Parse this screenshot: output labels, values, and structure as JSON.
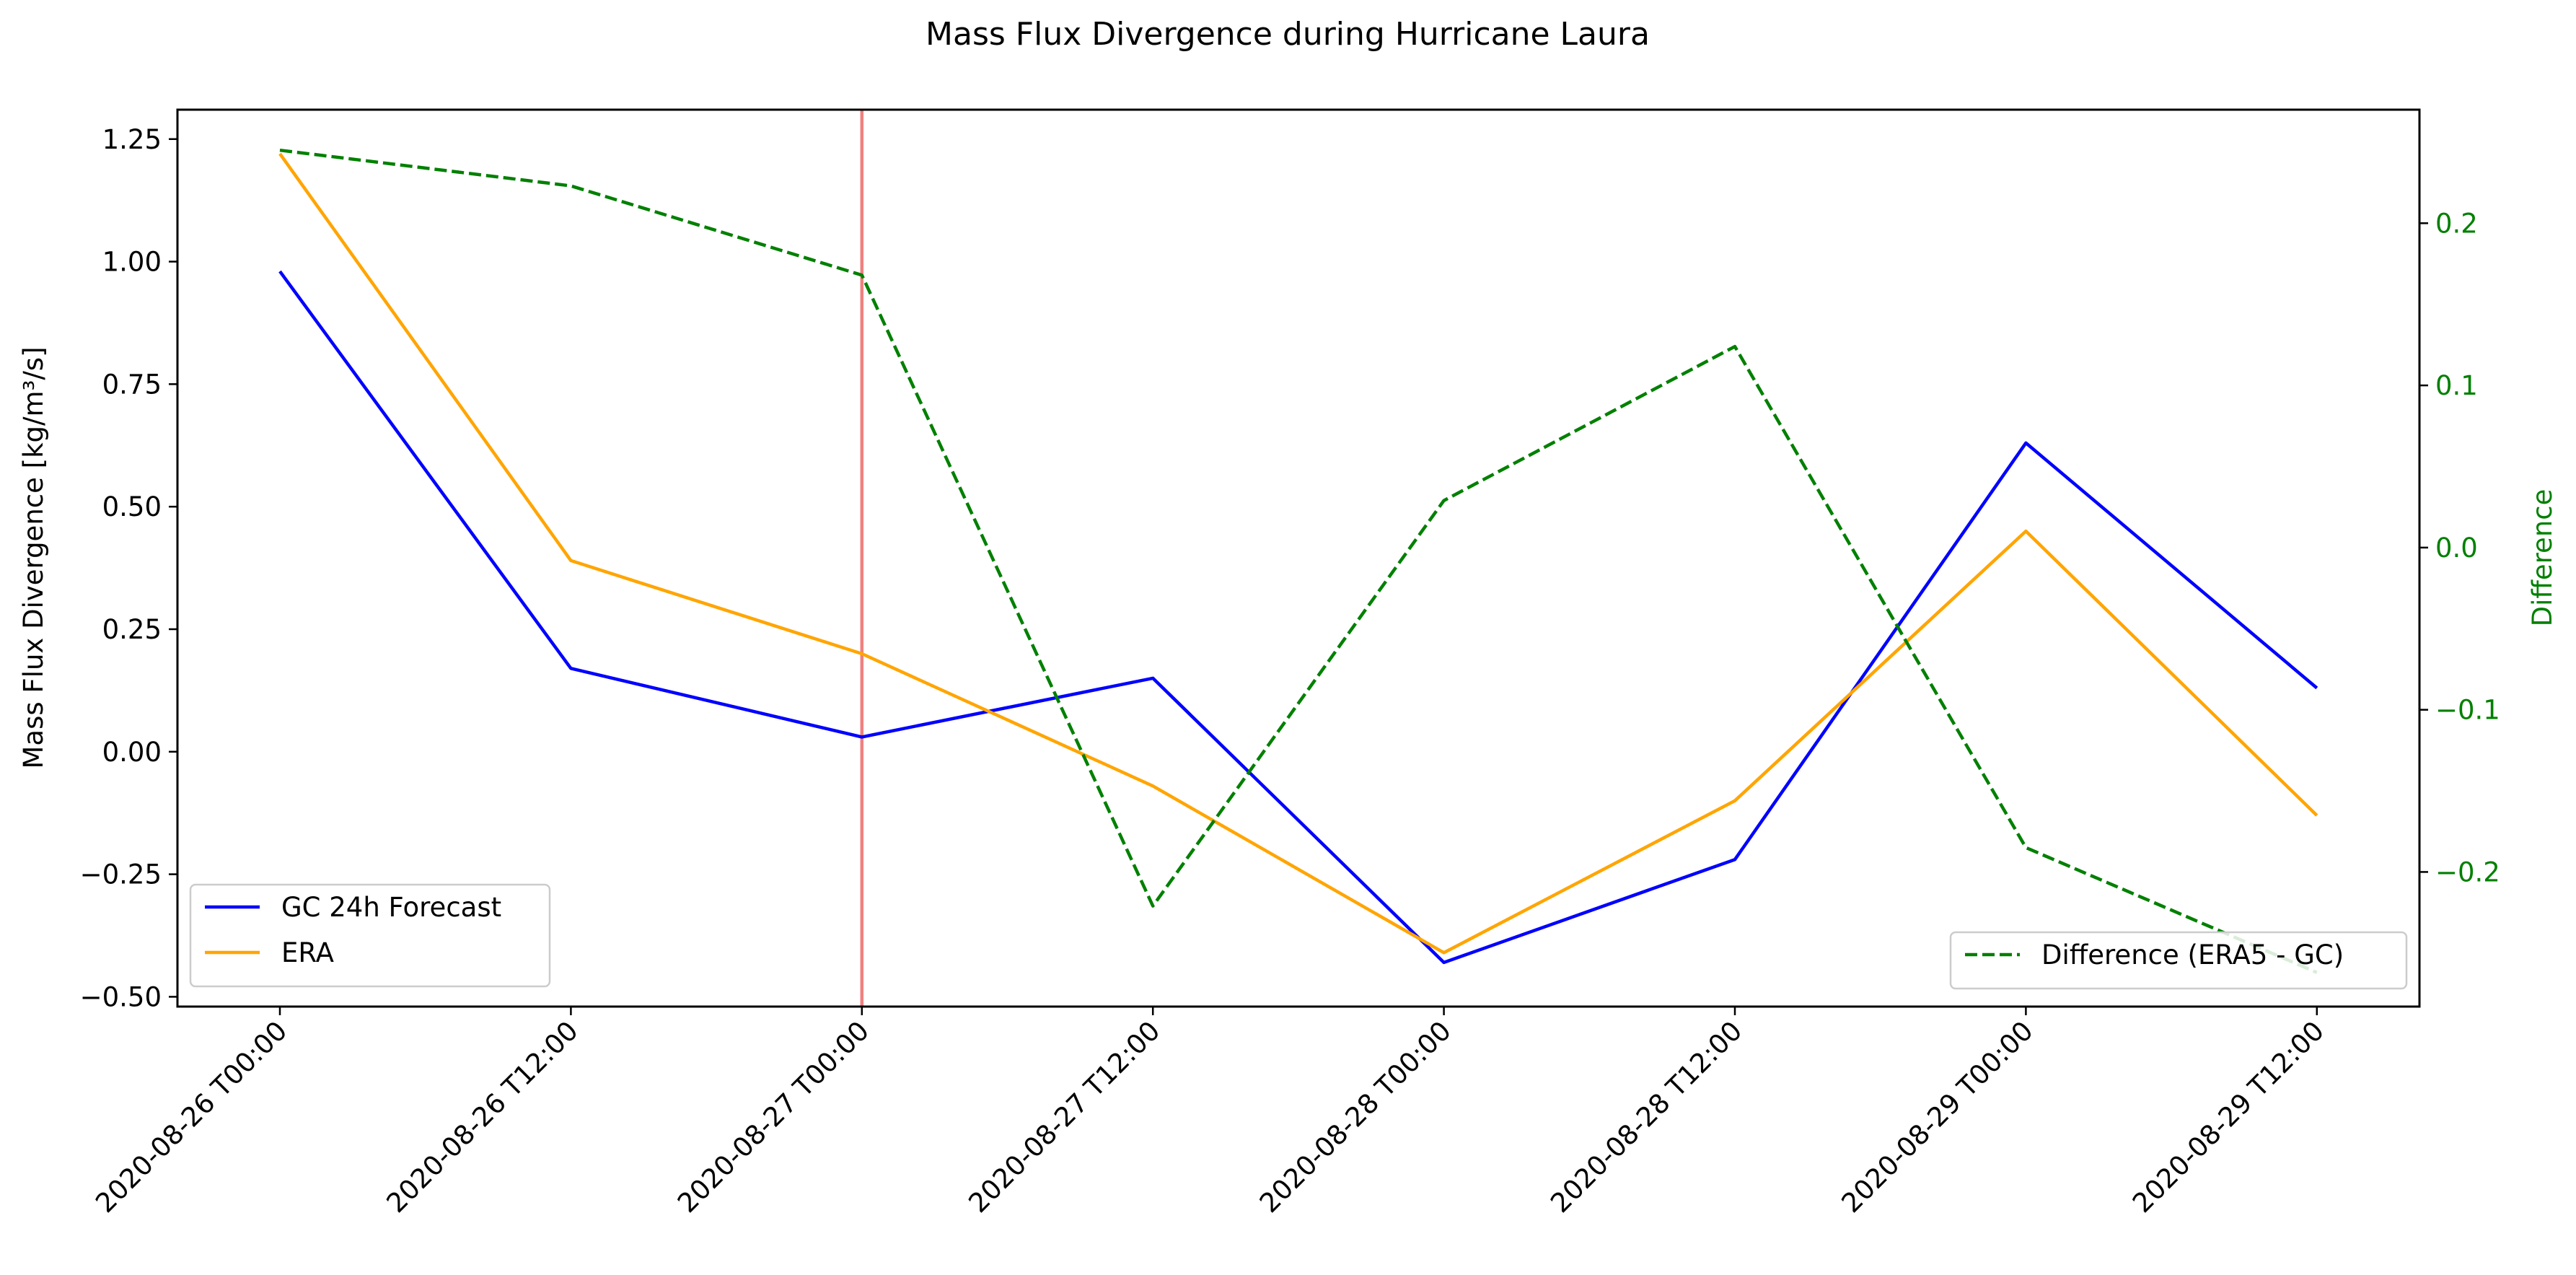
{
  "chart_data": {
    "type": "line",
    "title": "Mass Flux Divergence during Hurricane Laura",
    "xlabel": "",
    "ylabel": "Mass Flux Divergence [kg/m³/s]",
    "y2label": "Difference",
    "x": [
      "2020-08-26 T00:00",
      "2020-08-26 T12:00",
      "2020-08-27 T00:00",
      "2020-08-27 T12:00",
      "2020-08-28 T00:00",
      "2020-08-28 T12:00",
      "2020-08-29 T00:00",
      "2020-08-29 T12:00"
    ],
    "ylim": [
      -0.52,
      1.31
    ],
    "yticks": [
      -0.5,
      -0.25,
      0.0,
      0.25,
      0.5,
      0.75,
      1.0,
      1.25
    ],
    "ytick_labels": [
      "−0.50",
      "−0.25",
      "0.00",
      "0.25",
      "0.50",
      "0.75",
      "1.00",
      "1.25"
    ],
    "y2lim": [
      -0.283,
      0.27
    ],
    "y2ticks": [
      -0.2,
      -0.1,
      0.0,
      0.1,
      0.2
    ],
    "y2tick_labels": [
      "−0.2",
      "−0.1",
      "0.0",
      "0.1",
      "0.2"
    ],
    "grid": false,
    "vertical_marker": {
      "x": "2020-08-27 T00:00",
      "color": "#f08080"
    },
    "series": [
      {
        "name": "GC 24h Forecast",
        "axis": "left",
        "color": "#0000ff",
        "style": "solid",
        "values": [
          0.98,
          0.17,
          0.03,
          0.15,
          -0.43,
          -0.22,
          0.63,
          0.13
        ]
      },
      {
        "name": "ERA",
        "axis": "left",
        "color": "#ffa500",
        "style": "solid",
        "values": [
          1.22,
          0.39,
          0.2,
          -0.07,
          -0.41,
          -0.1,
          0.45,
          -0.13
        ]
      },
      {
        "name": "Difference (ERA5 - GC)",
        "axis": "right",
        "color": "#008000",
        "style": "dashed",
        "values": [
          0.245,
          0.223,
          0.168,
          -0.221,
          0.029,
          0.124,
          -0.185,
          -0.262
        ]
      }
    ],
    "legends": [
      {
        "placement": "lower-left",
        "entries": [
          "GC 24h Forecast",
          "ERA"
        ]
      },
      {
        "placement": "lower-right",
        "entries": [
          "Difference (ERA5 - GC)"
        ]
      }
    ]
  }
}
